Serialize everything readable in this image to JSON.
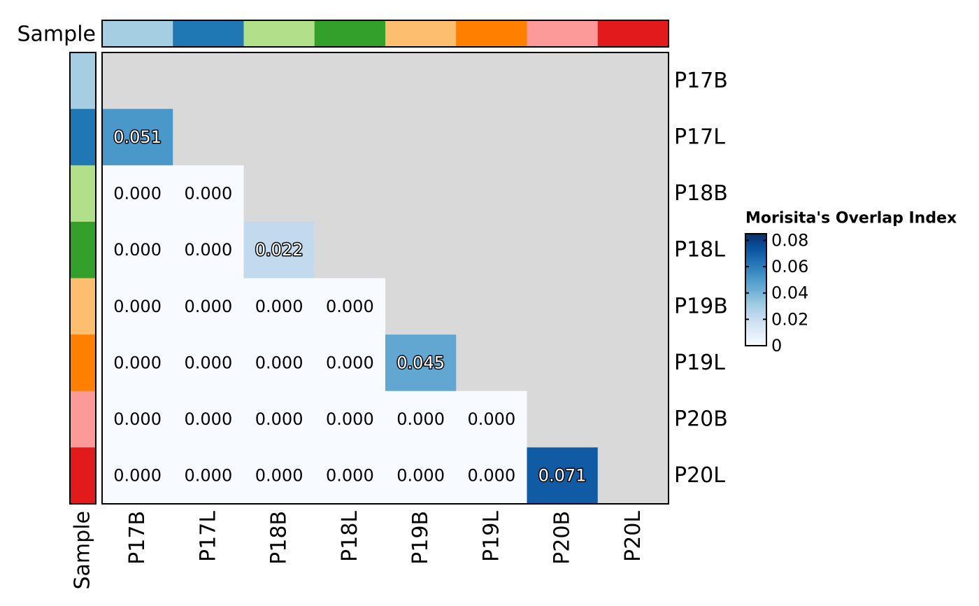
{
  "chart_data": {
    "type": "heatmap",
    "legend_title": "Morisita's Overlap Index",
    "legend_ticks": [
      "0",
      "0.02",
      "0.04",
      "0.06",
      "0.08"
    ],
    "legend_range": [
      0,
      0.085
    ],
    "legend_colors": [
      "#f7fbff",
      "#deebf7",
      "#c6dbef",
      "#9ecae1",
      "#6baed6",
      "#4292c6",
      "#2171b5",
      "#08519c",
      "#08306b"
    ],
    "annotation_label": "Sample",
    "rows": [
      "P17B",
      "P17L",
      "P18B",
      "P18L",
      "P19B",
      "P19L",
      "P20B",
      "P20L"
    ],
    "columns": [
      "P17B",
      "P17L",
      "P18B",
      "P18L",
      "P19B",
      "P19L",
      "P20B",
      "P20L"
    ],
    "sample_colors": [
      "#a6cee3",
      "#1f78b4",
      "#b2df8a",
      "#33a02c",
      "#fdbf6f",
      "#ff7f00",
      "#fb9a99",
      "#e31a1c"
    ],
    "na_color": "#d9d9d9",
    "values": [
      [
        null,
        null,
        null,
        null,
        null,
        null,
        null,
        null
      ],
      [
        0.051,
        null,
        null,
        null,
        null,
        null,
        null,
        null
      ],
      [
        0.0,
        0.0,
        null,
        null,
        null,
        null,
        null,
        null
      ],
      [
        0.0,
        0.0,
        0.022,
        null,
        null,
        null,
        null,
        null
      ],
      [
        0.0,
        0.0,
        0.0,
        0.0,
        null,
        null,
        null,
        null
      ],
      [
        0.0,
        0.0,
        0.0,
        0.0,
        0.045,
        null,
        null,
        null
      ],
      [
        0.0,
        0.0,
        0.0,
        0.0,
        0.0,
        0.0,
        null,
        null
      ],
      [
        0.0,
        0.0,
        0.0,
        0.0,
        0.0,
        0.0,
        0.071,
        null
      ]
    ],
    "labels": [
      [
        null,
        null,
        null,
        null,
        null,
        null,
        null,
        null
      ],
      [
        "0.051",
        null,
        null,
        null,
        null,
        null,
        null,
        null
      ],
      [
        "0.000",
        "0.000",
        null,
        null,
        null,
        null,
        null,
        null
      ],
      [
        "0.000",
        "0.000",
        "0.022",
        null,
        null,
        null,
        null,
        null
      ],
      [
        "0.000",
        "0.000",
        "0.000",
        "0.000",
        null,
        null,
        null,
        null
      ],
      [
        "0.000",
        "0.000",
        "0.000",
        "0.000",
        "0.045",
        null,
        null,
        null
      ],
      [
        "0.000",
        "0.000",
        "0.000",
        "0.000",
        "0.000",
        "0.000",
        null,
        null
      ],
      [
        "0.000",
        "0.000",
        "0.000",
        "0.000",
        "0.000",
        "0.000",
        "0.071",
        null
      ]
    ]
  }
}
